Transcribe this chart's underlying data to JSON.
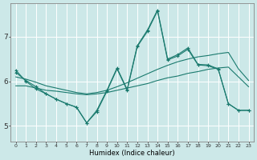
{
  "xlabel": "Humidex (Indice chaleur)",
  "bg_color": "#cce8e8",
  "grid_color": "#ffffff",
  "line_color": "#1a7a6e",
  "xlim": [
    -0.5,
    23.5
  ],
  "ylim": [
    4.65,
    7.75
  ],
  "xticks": [
    0,
    1,
    2,
    3,
    4,
    5,
    6,
    7,
    8,
    9,
    10,
    11,
    12,
    13,
    14,
    15,
    16,
    17,
    18,
    19,
    20,
    21,
    22,
    23
  ],
  "yticks": [
    5,
    6,
    7
  ],
  "curve1_x": [
    0,
    1,
    2,
    3,
    4,
    5,
    6,
    7,
    8,
    9,
    10,
    11,
    12,
    13,
    14,
    15,
    16,
    17,
    18,
    19,
    20,
    21,
    22,
    23
  ],
  "curve1_y": [
    6.25,
    6.0,
    5.83,
    5.72,
    5.6,
    5.5,
    5.42,
    5.07,
    5.32,
    5.78,
    6.28,
    5.8,
    6.78,
    7.12,
    7.58,
    6.48,
    6.57,
    6.72,
    6.37,
    6.35,
    6.27,
    5.5,
    5.35,
    5.35
  ],
  "curve2_x": [
    0,
    1,
    2,
    3,
    4,
    5,
    6,
    7,
    8,
    9,
    10,
    11,
    12,
    13,
    14,
    15,
    16,
    17,
    18,
    19,
    20,
    21,
    22,
    23
  ],
  "curve2_y": [
    5.9,
    5.9,
    5.85,
    5.8,
    5.78,
    5.75,
    5.72,
    5.7,
    5.72,
    5.75,
    5.8,
    5.85,
    5.9,
    5.95,
    6.02,
    6.08,
    6.12,
    6.18,
    6.22,
    6.27,
    6.3,
    6.32,
    6.1,
    5.88
  ],
  "curve3_x": [
    0,
    1,
    2,
    3,
    4,
    5,
    6,
    7,
    8,
    9,
    10,
    11,
    12,
    13,
    14,
    15,
    16,
    17,
    18,
    19,
    20,
    21,
    22,
    23
  ],
  "curve3_y": [
    6.1,
    6.05,
    5.98,
    5.9,
    5.85,
    5.8,
    5.75,
    5.72,
    5.75,
    5.8,
    5.88,
    5.97,
    6.07,
    6.17,
    6.27,
    6.36,
    6.44,
    6.5,
    6.55,
    6.58,
    6.62,
    6.65,
    6.28,
    6.02
  ],
  "curve4_x": [
    0,
    1,
    2,
    3,
    4,
    5,
    6,
    7,
    8,
    9,
    10,
    11,
    12,
    13,
    14,
    15,
    16,
    17,
    18,
    19,
    20,
    21,
    22,
    23
  ],
  "curve4_y": [
    6.2,
    6.02,
    5.88,
    5.72,
    5.6,
    5.5,
    5.42,
    5.07,
    5.35,
    5.8,
    6.3,
    5.82,
    6.8,
    7.15,
    7.6,
    6.5,
    6.6,
    6.75,
    6.38,
    6.37,
    6.28,
    5.5,
    5.35,
    5.35
  ]
}
